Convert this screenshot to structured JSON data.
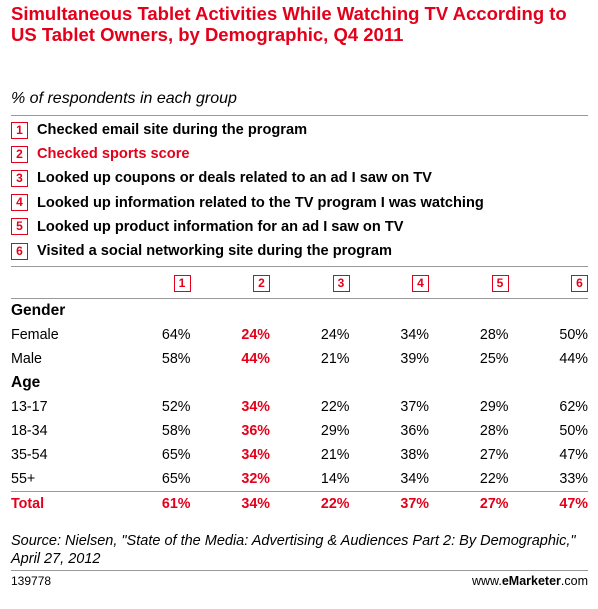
{
  "title": "Simultaneous Tablet Activities While Watching TV According to US Tablet Owners, by Demographic, Q4 2011",
  "subtitle": "% of respondents in each group",
  "legend": [
    {
      "num": "1",
      "label": "Checked email site during the program"
    },
    {
      "num": "2",
      "label": "Checked sports score"
    },
    {
      "num": "3",
      "label": "Looked up coupons or deals related to an ad I saw on TV"
    },
    {
      "num": "4",
      "label": "Looked up information related to the TV program I was watching"
    },
    {
      "num": "5",
      "label": "Looked up product information for an ad I saw on TV"
    },
    {
      "num": "6",
      "label": "Visited a social networking site during the program"
    }
  ],
  "chart_data": {
    "type": "table",
    "title": "Simultaneous Tablet Activities While Watching TV According to US Tablet Owners, by Demographic, Q4 2011",
    "unit": "% of respondents in each group",
    "columns": [
      "1",
      "2",
      "3",
      "4",
      "5",
      "6"
    ],
    "highlight_column": "2",
    "sections": [
      {
        "name": "Gender",
        "rows": [
          {
            "label": "Female",
            "values": [
              "64%",
              "24%",
              "24%",
              "34%",
              "28%",
              "50%"
            ]
          },
          {
            "label": "Male",
            "values": [
              "58%",
              "44%",
              "21%",
              "39%",
              "25%",
              "44%"
            ]
          }
        ]
      },
      {
        "name": "Age",
        "rows": [
          {
            "label": "13-17",
            "values": [
              "52%",
              "34%",
              "22%",
              "37%",
              "29%",
              "62%"
            ]
          },
          {
            "label": "18-34",
            "values": [
              "58%",
              "36%",
              "29%",
              "36%",
              "28%",
              "50%"
            ]
          },
          {
            "label": "35-54",
            "values": [
              "65%",
              "34%",
              "21%",
              "38%",
              "27%",
              "47%"
            ]
          },
          {
            "label": "55+",
            "values": [
              "65%",
              "32%",
              "14%",
              "34%",
              "22%",
              "33%"
            ]
          }
        ]
      }
    ],
    "total": {
      "label": "Total",
      "values": [
        "61%",
        "34%",
        "22%",
        "37%",
        "27%",
        "47%"
      ]
    }
  },
  "source": "Source: Nielsen, \"State of the Media: Advertising & Audiences Part 2: By Demographic,\" April 27, 2012",
  "footer": {
    "id": "139778",
    "brand_prefix": "www.",
    "brand_bold": "eMarketer",
    "brand_suffix": ".com"
  },
  "colors": {
    "accent": "#e4001b",
    "rule": "#999999"
  }
}
